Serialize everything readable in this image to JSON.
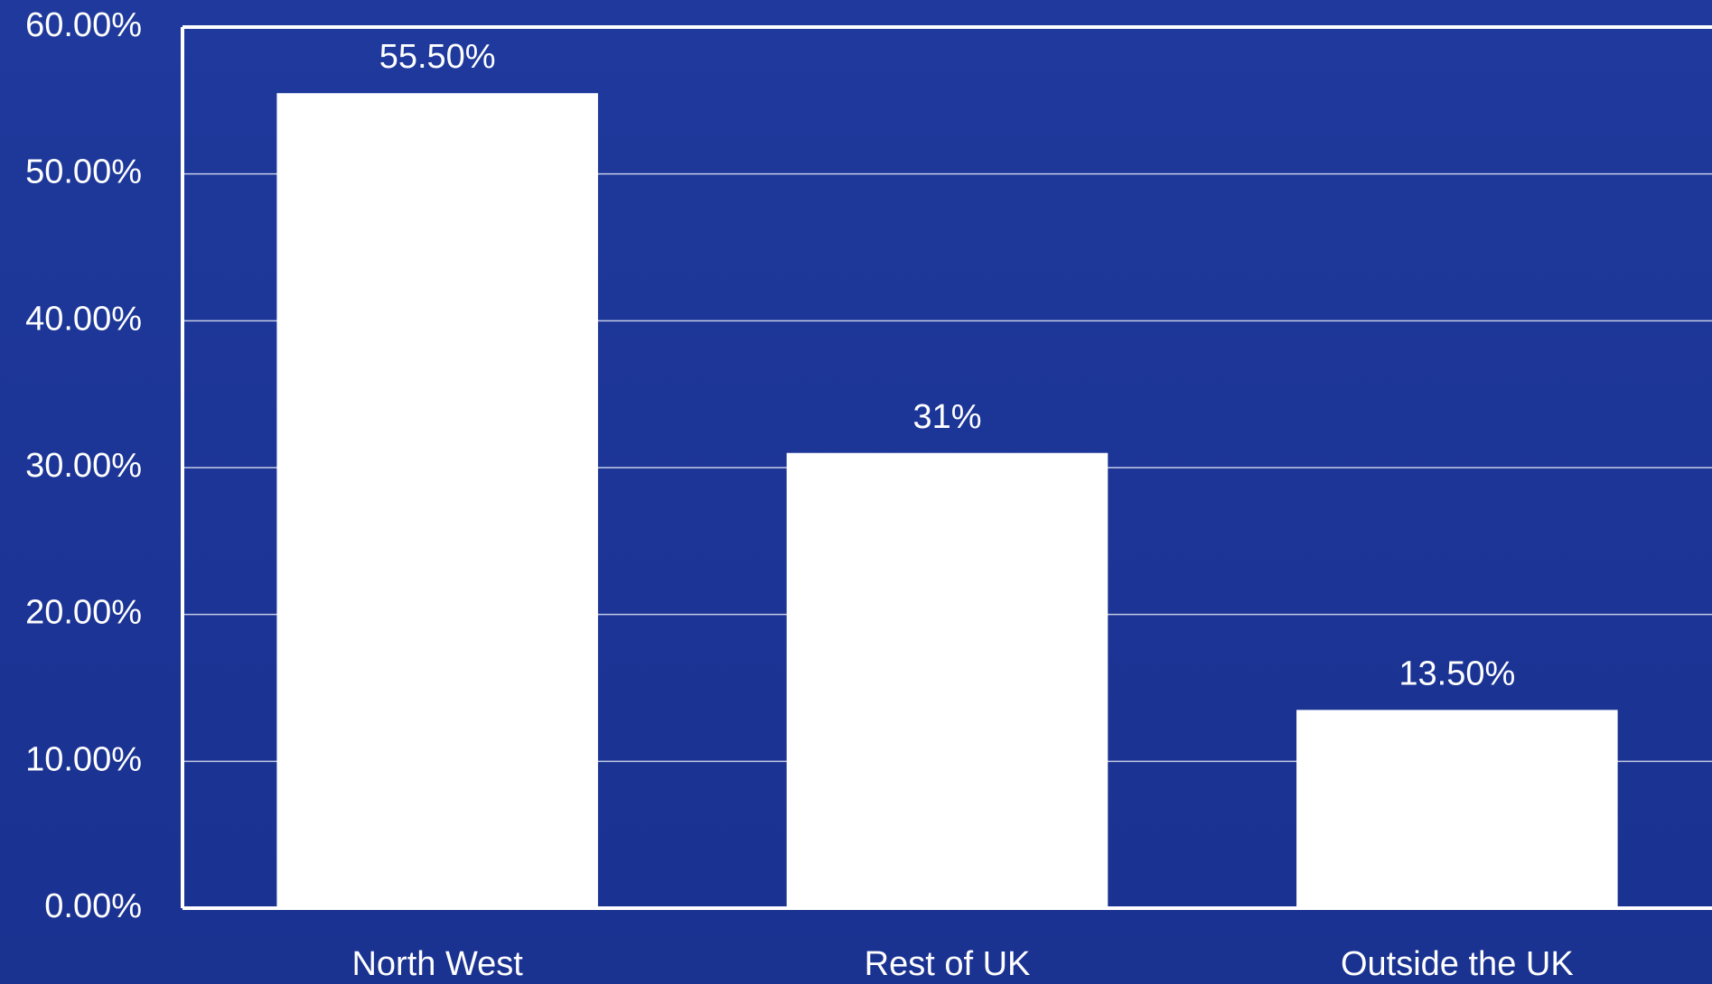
{
  "chart_data": {
    "type": "bar",
    "categories": [
      "North West",
      "Rest of UK",
      "Outside the UK"
    ],
    "values": [
      55.5,
      31,
      13.5
    ],
    "value_labels": [
      "55.50%",
      "31%",
      "13.50%"
    ],
    "color": "#ffffff",
    "ylim": [
      0,
      60
    ],
    "yticks": [
      {
        "value": 0,
        "label": "0.00%"
      },
      {
        "value": 10,
        "label": "10.00%"
      },
      {
        "value": 20,
        "label": "20.00%"
      },
      {
        "value": 30,
        "label": "30.00%"
      },
      {
        "value": 40,
        "label": "40.00%"
      },
      {
        "value": 50,
        "label": "50.00%"
      },
      {
        "value": 60,
        "label": "60.00%"
      }
    ],
    "grid": true
  }
}
